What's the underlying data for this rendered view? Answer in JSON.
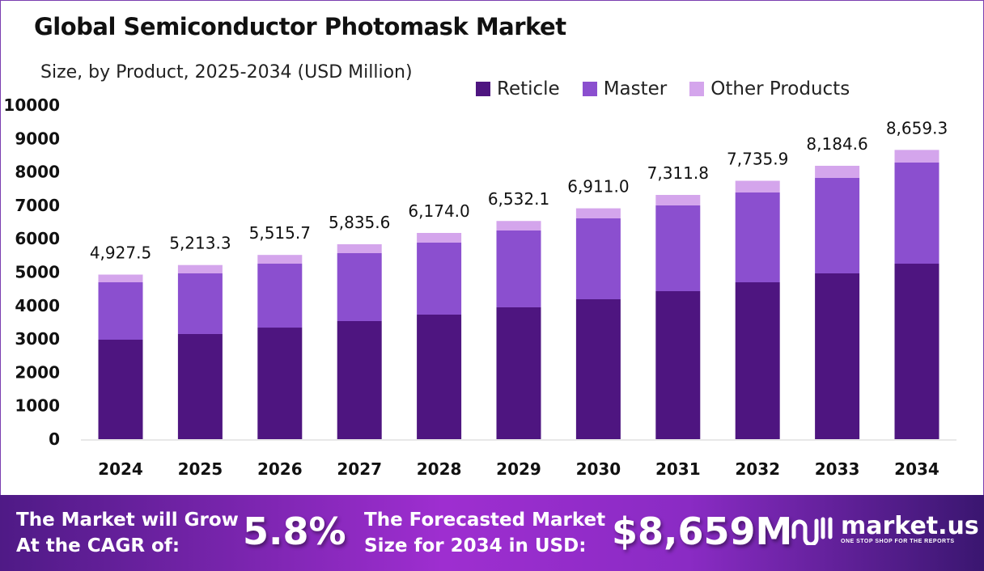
{
  "chart_data": {
    "type": "bar",
    "stacked": true,
    "title": "Global Semiconductor Photomask Market",
    "subtitle": "Size, by Product, 2025-2034 (USD Million)",
    "categories": [
      "2024",
      "2025",
      "2026",
      "2027",
      "2028",
      "2029",
      "2030",
      "2031",
      "2032",
      "2033",
      "2034"
    ],
    "series": [
      {
        "name": "Reticle",
        "color": "#4e1580",
        "values": [
          2978,
          3148,
          3341,
          3535,
          3729,
          3947,
          4189,
          4431,
          4697,
          4964,
          5254
        ]
      },
      {
        "name": "Master",
        "color": "#8b4fcf",
        "values": [
          1719,
          1816,
          1913,
          2034,
          2155,
          2300,
          2421,
          2567,
          2688,
          2857,
          3027
        ]
      },
      {
        "name": "Other Products",
        "color": "#d4a5ec",
        "values": [
          230.5,
          249.3,
          261.7,
          266.6,
          290.0,
          285.1,
          301.0,
          313.8,
          350.9,
          363.6,
          378.3
        ]
      }
    ],
    "totals_labels": [
      "4,927.5",
      "5,213.3",
      "5,515.7",
      "5,835.6",
      "6,174.0",
      "6,532.1",
      "6,911.0",
      "7,311.8",
      "7,735.9",
      "8,184.6",
      "8,659.3"
    ],
    "totals": [
      4927.5,
      5213.3,
      5515.7,
      5835.6,
      6174.0,
      6532.1,
      6911.0,
      7311.8,
      7735.9,
      8184.6,
      8659.3
    ],
    "ylim": [
      0,
      10000
    ],
    "yticks": [
      "0",
      "1000",
      "2000",
      "3000",
      "4000",
      "5000",
      "6000",
      "7000",
      "8000",
      "9000",
      "10000"
    ],
    "grid": false,
    "legend_position": "top-right"
  },
  "footer": {
    "cagr_text_1": "The Market will Grow",
    "cagr_text_2": "At the CAGR of:",
    "cagr_value": "5.8%",
    "forecast_text_1": "The Forecasted Market",
    "forecast_text_2": "Size for 2034 in USD:",
    "forecast_value": "$8,659M",
    "logo_name": "market.us",
    "logo_tagline": "ONE STOP SHOP FOR THE REPORTS"
  }
}
